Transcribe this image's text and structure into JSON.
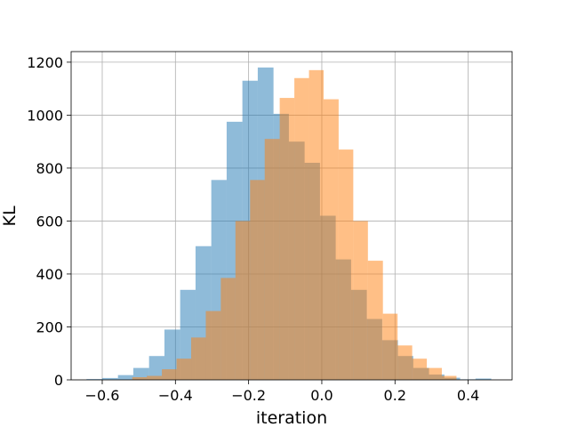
{
  "chart_data": {
    "type": "bar",
    "title": "",
    "xlabel": "iteration",
    "ylabel": "KL",
    "xlim": [
      -0.685,
      0.52
    ],
    "ylim": [
      0,
      1240
    ],
    "xticks": [
      -0.6,
      -0.4,
      -0.2,
      0.0,
      0.2,
      0.4
    ],
    "xtick_labels": [
      "−0.6",
      "−0.4",
      "−0.2",
      "0.0",
      "0.2",
      "0.4"
    ],
    "yticks": [
      0,
      200,
      400,
      600,
      800,
      1000,
      1200
    ],
    "ytick_labels": [
      "0",
      "200",
      "400",
      "600",
      "800",
      "1000",
      "1200"
    ],
    "grid": true,
    "legend": "none",
    "series": [
      {
        "color": "#1f77b4",
        "opacity": 0.5,
        "bin_edges": [
          -0.643,
          -0.6,
          -0.557,
          -0.515,
          -0.472,
          -0.43,
          -0.387,
          -0.345,
          -0.302,
          -0.26,
          -0.217,
          -0.175,
          -0.132,
          -0.09,
          -0.047,
          -0.005,
          0.038,
          0.08,
          0.123,
          0.165,
          0.208,
          0.25,
          0.293,
          0.335,
          0.378,
          0.42,
          0.463
        ],
        "counts": [
          3,
          7,
          18,
          45,
          90,
          190,
          340,
          505,
          755,
          975,
          1130,
          1180,
          1005,
          900,
          820,
          620,
          455,
          340,
          230,
          150,
          90,
          45,
          20,
          8,
          2,
          5
        ]
      },
      {
        "color": "#ff7f0e",
        "opacity": 0.5,
        "bin_edges": [
          -0.518,
          -0.478,
          -0.437,
          -0.397,
          -0.357,
          -0.317,
          -0.276,
          -0.236,
          -0.196,
          -0.156,
          -0.115,
          -0.075,
          -0.035,
          0.005,
          0.046,
          0.086,
          0.126,
          0.167,
          0.207,
          0.247,
          0.287,
          0.328,
          0.368
        ],
        "counts": [
          10,
          15,
          40,
          80,
          160,
          260,
          385,
          600,
          755,
          910,
          1065,
          1140,
          1170,
          1060,
          870,
          600,
          450,
          250,
          130,
          80,
          45,
          15
        ]
      }
    ]
  }
}
